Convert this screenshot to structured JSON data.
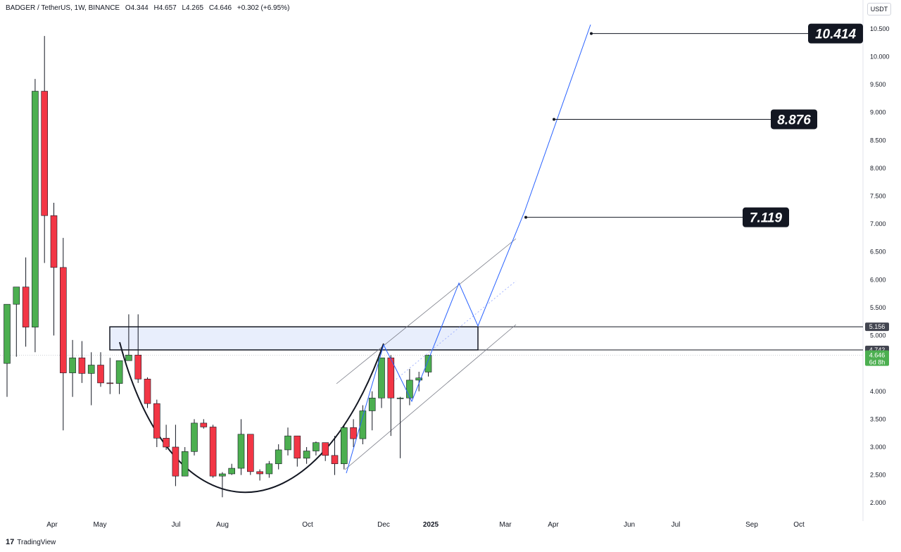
{
  "header": {
    "symbol": "BADGER / TetherUS, 1W, BINANCE",
    "open": "O4.344",
    "high": "H4.657",
    "low": "L4.265",
    "close": "C4.646",
    "change": "+0.302 (+6.95%)"
  },
  "unit": "USDT",
  "footer": {
    "logo_glyph": "17",
    "brand": "TradingView"
  },
  "colors": {
    "up": "#4caf50",
    "down": "#f23645",
    "projection": "#2962ff",
    "zone_fill": "#e8eefc"
  },
  "chart_data": {
    "type": "candlestick",
    "ylim": [
      1.75,
      10.75
    ],
    "yticks": [
      "2.000",
      "2.500",
      "3.000",
      "3.500",
      "4.000",
      "4.500",
      "5.000",
      "5.500",
      "6.000",
      "6.500",
      "7.000",
      "7.500",
      "8.000",
      "8.500",
      "9.000",
      "9.500",
      "10.000",
      "10.500"
    ],
    "xticks": [
      "Apr",
      "May",
      "Jul",
      "Aug",
      "Oct",
      "Dec",
      "2025",
      "Mar",
      "Apr",
      "Jun",
      "Jul",
      "Sep",
      "Oct"
    ],
    "candles": [
      [
        4.5,
        5.56,
        3.9,
        5.56
      ],
      [
        5.56,
        5.87,
        4.62,
        5.87
      ],
      [
        5.87,
        6.4,
        4.8,
        5.15
      ],
      [
        5.15,
        9.6,
        4.7,
        9.38
      ],
      [
        9.38,
        10.37,
        6.3,
        7.15
      ],
      [
        7.15,
        7.38,
        5.0,
        6.22
      ],
      [
        6.22,
        6.75,
        3.3,
        4.33
      ],
      [
        4.33,
        4.92,
        3.9,
        4.6
      ],
      [
        4.6,
        4.9,
        4.15,
        4.32
      ],
      [
        4.32,
        4.7,
        3.75,
        4.47
      ],
      [
        4.47,
        4.7,
        4.08,
        4.15
      ],
      [
        4.15,
        4.6,
        3.95,
        4.14
      ],
      [
        4.14,
        4.55,
        3.95,
        4.55
      ],
      [
        4.55,
        5.38,
        4.55,
        4.65
      ],
      [
        4.65,
        5.38,
        4.15,
        4.22
      ],
      [
        4.22,
        4.25,
        3.7,
        3.78
      ],
      [
        3.78,
        3.85,
        3.0,
        3.16
      ],
      [
        3.16,
        3.4,
        2.95,
        3.0
      ],
      [
        3.0,
        3.4,
        2.3,
        2.48
      ],
      [
        2.48,
        3.0,
        2.48,
        2.92
      ],
      [
        2.92,
        3.5,
        2.85,
        3.43
      ],
      [
        3.43,
        3.5,
        3.33,
        3.36
      ],
      [
        3.36,
        3.4,
        2.45,
        2.48
      ],
      [
        2.48,
        2.55,
        2.1,
        2.52
      ],
      [
        2.52,
        2.7,
        2.5,
        2.62
      ],
      [
        2.62,
        3.5,
        2.5,
        3.23
      ],
      [
        3.23,
        3.23,
        2.5,
        2.56
      ],
      [
        2.56,
        2.6,
        2.4,
        2.52
      ],
      [
        2.52,
        2.75,
        2.45,
        2.7
      ],
      [
        2.7,
        3.05,
        2.6,
        2.95
      ],
      [
        2.95,
        3.35,
        2.85,
        3.2
      ],
      [
        3.2,
        3.2,
        2.65,
        2.8
      ],
      [
        2.8,
        3.0,
        2.7,
        2.93
      ],
      [
        2.93,
        3.1,
        2.85,
        3.08
      ],
      [
        3.08,
        3.08,
        2.75,
        2.85
      ],
      [
        2.85,
        3.2,
        2.5,
        2.7
      ],
      [
        2.7,
        3.4,
        2.6,
        3.35
      ],
      [
        3.35,
        3.5,
        3.0,
        3.15
      ],
      [
        3.15,
        3.75,
        3.05,
        3.65
      ],
      [
        3.65,
        4.0,
        3.3,
        3.88
      ],
      [
        3.88,
        4.6,
        3.7,
        4.6
      ],
      [
        4.6,
        4.65,
        3.2,
        3.88
      ],
      [
        3.88,
        3.9,
        2.8,
        3.88
      ],
      [
        3.88,
        4.4,
        3.75,
        4.2
      ],
      [
        4.2,
        4.35,
        4.0,
        4.24
      ],
      [
        4.344,
        4.657,
        4.265,
        4.646
      ]
    ],
    "levels": [
      "7.119",
      "8.876",
      "10.414"
    ],
    "price_tags": [
      {
        "label": "5.156",
        "value": 5.156
      },
      {
        "label": "4.742",
        "value": 4.742
      },
      {
        "label": "4.646",
        "value": 4.646,
        "sub": "6d 8h"
      }
    ]
  }
}
